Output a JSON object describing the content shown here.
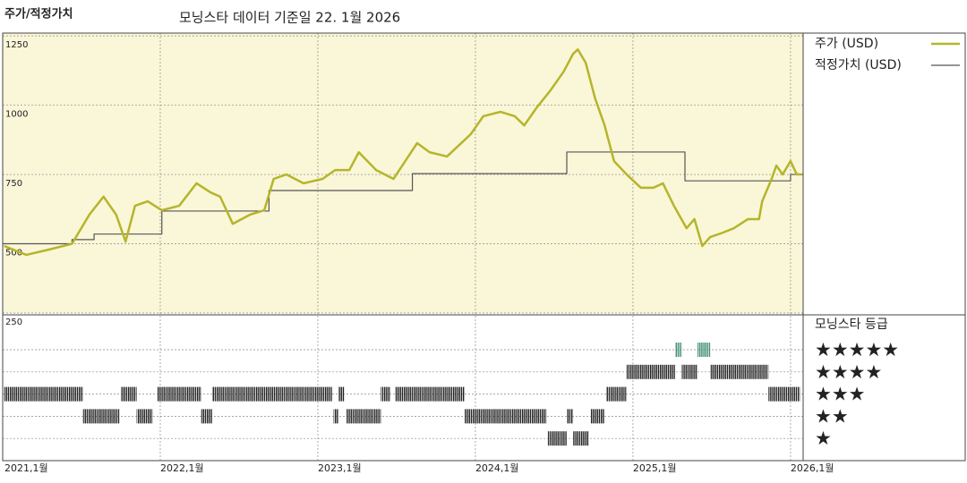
{
  "chart_data": {
    "type": "line",
    "label": "주가/적정가치",
    "title": "모닝스타 데이터 기준일 22. 1월 2026",
    "background": "#faf6d8",
    "xlim": [
      2021,
      2026.08
    ],
    "xticks": [
      {
        "value": 2021,
        "label": "2021,1월"
      },
      {
        "value": 2022,
        "label": "2022,1월"
      },
      {
        "value": 2023,
        "label": "2023,1월"
      },
      {
        "value": 2024,
        "label": "2024,1월"
      },
      {
        "value": 2025,
        "label": "2025,1월"
      },
      {
        "value": 2026,
        "label": "2026,1월"
      }
    ],
    "ylim": [
      250,
      1260
    ],
    "yticks": [
      250,
      500,
      750,
      1000,
      1250
    ],
    "grid": true,
    "series": [
      {
        "name": "주가 (USD)",
        "color": "#b5b52a",
        "x": [
          2021.01,
          2021.15,
          2021.3,
          2021.44,
          2021.55,
          2021.64,
          2021.72,
          2021.78,
          2021.84,
          2021.92,
          2022.01,
          2022.12,
          2022.23,
          2022.32,
          2022.38,
          2022.46,
          2022.57,
          2022.66,
          2022.72,
          2022.8,
          2022.91,
          2023.03,
          2023.11,
          2023.2,
          2023.26,
          2023.37,
          2023.48,
          2023.63,
          2023.71,
          2023.82,
          2023.91,
          2023.97,
          2024.05,
          2024.16,
          2024.25,
          2024.31,
          2024.39,
          2024.48,
          2024.56,
          2024.62,
          2024.65,
          2024.7,
          2024.76,
          2024.82,
          2024.88,
          2024.96,
          2025.05,
          2025.13,
          2025.19,
          2025.26,
          2025.34,
          2025.39,
          2025.44,
          2025.49,
          2025.57,
          2025.64,
          2025.73,
          2025.8,
          2025.82,
          2025.88,
          2025.91,
          2025.95,
          2026.0,
          2026.04,
          2026.07
        ],
        "values": [
          492,
          460,
          480,
          500,
          605,
          670,
          605,
          508,
          637,
          653,
          621,
          637,
          718,
          685,
          670,
          572,
          605,
          621,
          734,
          750,
          718,
          734,
          766,
          766,
          830,
          766,
          734,
          863,
          830,
          815,
          863,
          895,
          960,
          976,
          960,
          927,
          992,
          1056,
          1121,
          1185,
          1201,
          1153,
          1024,
          927,
          798,
          750,
          702,
          702,
          718,
          637,
          556,
          589,
          492,
          524,
          540,
          556,
          589,
          589,
          653,
          734,
          782,
          750,
          798,
          750,
          750
        ]
      },
      {
        "name": "적정가치 (USD)",
        "color": "#555555",
        "drawstyle": "steps-post",
        "x": [
          2021.0,
          2021.44,
          2021.58,
          2022.01,
          2022.69,
          2023.6,
          2024.58,
          2025.33,
          2026.0
        ],
        "values": [
          500,
          515,
          535,
          618,
          692,
          753,
          831,
          727,
          750
        ]
      }
    ],
    "ratings_title": "모닝스타 등급",
    "rating_labels": [
      "★",
      "★★",
      "★★★",
      "★★★★",
      "★★★★★"
    ],
    "rating_colors": [
      "#222222",
      "#222222",
      "#222222",
      "#222222",
      "#3d8c72"
    ],
    "ratings": {
      "start": [
        2021.01,
        2021.51,
        2021.75,
        2021.85,
        2021.98,
        2022.26,
        2022.33,
        2023.1,
        2023.13,
        2023.18,
        2023.4,
        2023.49,
        2023.93,
        2024.46,
        2024.58,
        2024.62,
        2024.73,
        2024.83,
        2024.96,
        2025.27,
        2025.31,
        2025.41,
        2025.49,
        2025.86
      ],
      "end": [
        2021.51,
        2021.74,
        2021.85,
        2021.95,
        2022.26,
        2022.33,
        2023.09,
        2023.13,
        2023.17,
        2023.4,
        2023.46,
        2023.93,
        2024.45,
        2024.58,
        2024.62,
        2024.72,
        2024.82,
        2024.96,
        2025.27,
        2025.31,
        2025.41,
        2025.49,
        2025.86,
        2026.06
      ],
      "stars": [
        3,
        2,
        3,
        2,
        3,
        2,
        3,
        2,
        3,
        2,
        3,
        3,
        2,
        1,
        2,
        1,
        2,
        3,
        4,
        5,
        4,
        5,
        4,
        3
      ]
    }
  }
}
